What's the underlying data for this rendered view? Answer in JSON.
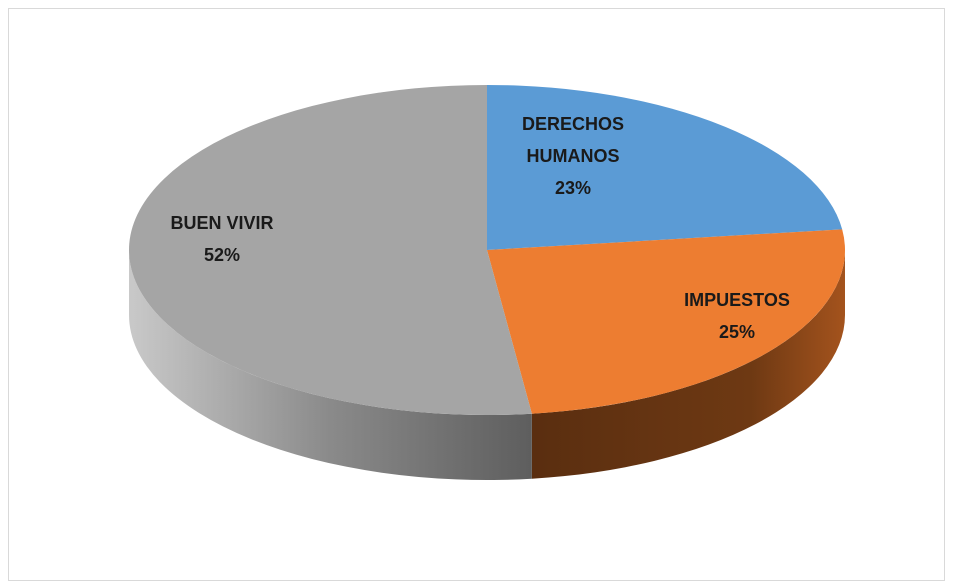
{
  "chart_data": {
    "type": "pie",
    "categories": [
      "DERECHOS HUMANOS",
      "IMPUESTOS",
      "BUEN VIVIR"
    ],
    "values": [
      23,
      25,
      52
    ],
    "value_labels": [
      "23%",
      "25%",
      "52%"
    ],
    "colors": [
      "#5b9bd5",
      "#ed7d31",
      "#a5a5a5"
    ]
  }
}
